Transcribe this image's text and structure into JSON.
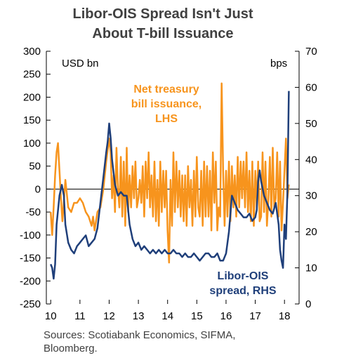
{
  "chart_data": {
    "type": "line",
    "title_lines": [
      "Libor-OIS Spread Isn't Just",
      "About T-bill Issuance"
    ],
    "left_axis": {
      "unit": "USD bn",
      "ticks": [
        "300",
        "250",
        "200",
        "150",
        "100",
        "50",
        "0",
        "-50",
        "-100",
        "-150",
        "-200",
        "-250"
      ],
      "ylim": [
        -250,
        300
      ]
    },
    "right_axis": {
      "unit": "bps",
      "ticks": [
        "70",
        "60",
        "50",
        "40",
        "30",
        "20",
        "10",
        "0"
      ],
      "ylim": [
        0,
        70
      ]
    },
    "x_axis": {
      "ticks": [
        "10",
        "11",
        "12",
        "13",
        "14",
        "15",
        "16",
        "17",
        "18"
      ],
      "xlim": [
        2009.85,
        2018.5
      ]
    },
    "source_lines": [
      "Sources: Scotiabank Economics, SIFMA,",
      "Bloomberg."
    ],
    "colors": {
      "issuance": "#F7941D",
      "spread": "#1F3F7A",
      "axis": "#000000",
      "zero_line": "#000000"
    },
    "series": [
      {
        "name": "Net treasury bill issuance, LHS",
        "label_lines": [
          "Net treasury",
          "bill issuance,",
          "LHS"
        ],
        "axis": "left",
        "x": [
          2010.0,
          2010.05,
          2010.1,
          2010.15,
          2010.2,
          2010.25,
          2010.3,
          2010.35,
          2010.4,
          2010.5,
          2010.6,
          2010.7,
          2010.8,
          2010.9,
          2011.0,
          2011.1,
          2011.2,
          2011.3,
          2011.4,
          2011.45,
          2011.5,
          2011.6,
          2011.7,
          2011.8,
          2011.9,
          2012.0,
          2012.05,
          2012.1,
          2012.15,
          2012.2,
          2012.25,
          2012.3,
          2012.35,
          2012.4,
          2012.45,
          2012.5,
          2012.55,
          2012.6,
          2012.65,
          2012.7,
          2012.75,
          2012.8,
          2012.85,
          2012.9,
          2012.95,
          2013.0,
          2013.05,
          2013.1,
          2013.15,
          2013.2,
          2013.25,
          2013.3,
          2013.35,
          2013.4,
          2013.45,
          2013.5,
          2013.55,
          2013.6,
          2013.65,
          2013.7,
          2013.75,
          2013.8,
          2013.85,
          2013.9,
          2013.95,
          2014.0,
          2014.05,
          2014.1,
          2014.15,
          2014.2,
          2014.25,
          2014.3,
          2014.35,
          2014.4,
          2014.45,
          2014.5,
          2014.55,
          2014.6,
          2014.65,
          2014.7,
          2014.75,
          2014.8,
          2014.85,
          2014.9,
          2014.95,
          2015.0,
          2015.05,
          2015.1,
          2015.15,
          2015.2,
          2015.25,
          2015.3,
          2015.35,
          2015.4,
          2015.45,
          2015.5,
          2015.55,
          2015.6,
          2015.65,
          2015.7,
          2015.75,
          2015.8,
          2015.85,
          2015.9,
          2015.95,
          2016.0,
          2016.05,
          2016.1,
          2016.15,
          2016.2,
          2016.25,
          2016.3,
          2016.35,
          2016.4,
          2016.45,
          2016.5,
          2016.55,
          2016.6,
          2016.65,
          2016.7,
          2016.75,
          2016.8,
          2016.85,
          2016.9,
          2016.95,
          2017.0,
          2017.05,
          2017.1,
          2017.15,
          2017.2,
          2017.25,
          2017.3,
          2017.35,
          2017.4,
          2017.45,
          2017.5,
          2017.55,
          2017.6,
          2017.65,
          2017.7,
          2017.75,
          2017.8,
          2017.85,
          2017.9,
          2017.95,
          2018.0,
          2018.05,
          2018.1,
          2018.15
        ],
        "values": [
          -50,
          -100,
          -40,
          30,
          80,
          100,
          40,
          -20,
          -70,
          20,
          -40,
          -50,
          -30,
          -30,
          -20,
          -30,
          -50,
          -60,
          -80,
          -60,
          -90,
          -50,
          -40,
          0,
          60,
          110,
          80,
          -20,
          30,
          -50,
          90,
          0,
          -40,
          70,
          -60,
          60,
          -80,
          90,
          -50,
          30,
          -40,
          50,
          -20,
          60,
          -40,
          -20,
          20,
          -30,
          50,
          -60,
          60,
          -20,
          80,
          -40,
          30,
          -60,
          60,
          -70,
          20,
          -80,
          60,
          -50,
          40,
          -40,
          40,
          -90,
          -160,
          20,
          -80,
          80,
          -50,
          60,
          -40,
          40,
          -60,
          30,
          -70,
          30,
          -80,
          50,
          -40,
          20,
          -80,
          40,
          -60,
          70,
          -40,
          -60,
          40,
          -80,
          60,
          -60,
          50,
          -60,
          40,
          -90,
          80,
          -30,
          60,
          -90,
          -40,
          -60,
          230,
          40,
          -80,
          40,
          -60,
          60,
          -70,
          50,
          -40,
          30,
          -60,
          70,
          -40,
          60,
          -20,
          60,
          -40,
          80,
          -50,
          40,
          -70,
          60,
          -80,
          40,
          -40,
          60,
          -70,
          -60,
          80,
          -50,
          60,
          -80,
          -20,
          70,
          -60,
          90,
          -40,
          -20,
          80,
          -60,
          60,
          -90,
          -30,
          40,
          110,
          -20,
          10
        ]
      },
      {
        "name": "Libor-OIS spread, RHS",
        "label_lines": [
          "Libor-OIS",
          "spread, RHS"
        ],
        "axis": "right",
        "x": [
          2010.0,
          2010.05,
          2010.1,
          2010.15,
          2010.2,
          2010.3,
          2010.38,
          2010.45,
          2010.5,
          2010.6,
          2010.7,
          2010.8,
          2010.9,
          2011.0,
          2011.1,
          2011.2,
          2011.3,
          2011.4,
          2011.5,
          2011.6,
          2011.7,
          2011.8,
          2011.9,
          2011.95,
          2012.0,
          2012.05,
          2012.1,
          2012.2,
          2012.3,
          2012.4,
          2012.5,
          2012.6,
          2012.7,
          2012.8,
          2012.9,
          2013.0,
          2013.1,
          2013.2,
          2013.3,
          2013.4,
          2013.5,
          2013.6,
          2013.7,
          2013.8,
          2013.9,
          2014.0,
          2014.1,
          2014.2,
          2014.3,
          2014.4,
          2014.5,
          2014.6,
          2014.7,
          2014.8,
          2014.9,
          2015.0,
          2015.1,
          2015.2,
          2015.3,
          2015.4,
          2015.5,
          2015.6,
          2015.7,
          2015.8,
          2015.9,
          2016.0,
          2016.1,
          2016.2,
          2016.3,
          2016.4,
          2016.5,
          2016.6,
          2016.7,
          2016.8,
          2016.9,
          2017.0,
          2017.05,
          2017.1,
          2017.15,
          2017.2,
          2017.3,
          2017.4,
          2017.5,
          2017.6,
          2017.7,
          2017.8,
          2017.85,
          2017.9,
          2017.95,
          2018.0,
          2018.05,
          2018.1,
          2018.15
        ],
        "values": [
          11,
          10,
          7,
          11,
          22,
          30,
          33,
          30,
          22,
          17,
          15,
          14,
          16,
          17,
          18,
          19,
          16,
          17,
          18,
          21,
          28,
          35,
          42,
          45,
          50,
          46,
          40,
          33,
          30,
          31,
          30,
          30,
          22,
          18,
          16,
          17,
          15,
          16,
          15,
          14,
          15,
          14,
          15,
          14,
          15,
          14,
          14,
          15,
          14,
          14,
          13,
          14,
          13,
          13,
          14,
          13,
          12,
          13,
          14,
          14,
          13,
          13,
          14,
          12,
          12,
          14,
          20,
          30,
          28,
          26,
          25,
          24,
          24,
          25,
          23,
          24,
          26,
          34,
          37,
          34,
          30,
          28,
          26,
          25,
          28,
          22,
          15,
          12,
          10,
          22,
          18,
          31,
          59
        ]
      }
    ],
    "grid": false,
    "legend": "inline annotations"
  }
}
